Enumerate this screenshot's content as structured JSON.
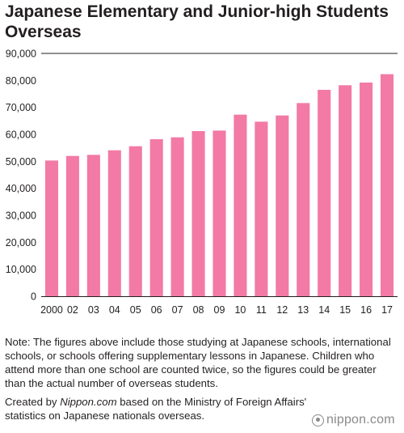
{
  "chart_data": {
    "type": "bar",
    "title": "Japanese Elementary and Junior-high Students Overseas",
    "categories": [
      "2000",
      "02",
      "03",
      "04",
      "05",
      "06",
      "07",
      "08",
      "09",
      "10",
      "11",
      "12",
      "13",
      "14",
      "15",
      "16",
      "17"
    ],
    "series": [
      {
        "values": [
          50300,
          52000,
          52400,
          54100,
          55600,
          58200,
          58900,
          61200,
          61400,
          67300,
          64700,
          67000,
          71600,
          76500,
          78200,
          79200,
          82300
        ]
      }
    ],
    "y_ticks": [
      0,
      10000,
      20000,
      30000,
      40000,
      50000,
      60000,
      70000,
      80000,
      90000
    ],
    "y_tick_labels": [
      "0",
      "10,000",
      "20,000",
      "30,000",
      "40,000",
      "50,000",
      "60,000",
      "70,000",
      "80,000",
      "90,000"
    ],
    "ylim": [
      0,
      90000
    ],
    "grid": false,
    "legend": "none",
    "bar_color": "#f27aa5",
    "axis_color": "#231f20"
  },
  "note": "Note: The figures above include those studying at Japanese schools, international schools, or schools offering supplementary lessons in Japanese. Children who attend more than one school are counted twice, so the figures could be greater than the actual number of overseas students.",
  "credit": {
    "prefix": "Created by ",
    "site": "Nippon.com",
    "suffix": " based on the Ministry of Foreign Affairs' statistics on Japanese nationals overseas."
  },
  "logo": {
    "text": "nippon.com",
    "icon": "nippon-logo-icon"
  }
}
